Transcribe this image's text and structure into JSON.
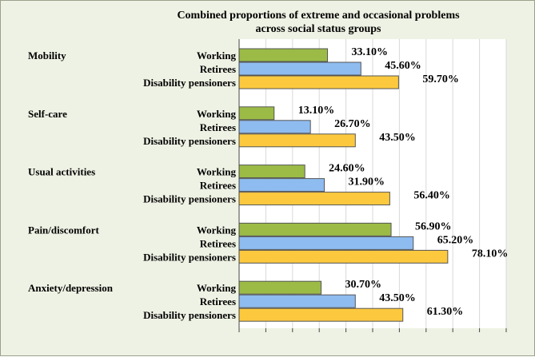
{
  "chart_data": {
    "type": "bar",
    "orientation": "horizontal",
    "title_lines": [
      "Combined proportions of extreme and occasional problems",
      "across social status groups"
    ],
    "xlim": [
      0,
      100
    ],
    "grid": true,
    "groups": [
      {
        "label": "Mobility",
        "bars": [
          {
            "name": "Working",
            "value": 33.1,
            "label": "33.10%"
          },
          {
            "name": "Retirees",
            "value": 45.6,
            "label": "45.60%"
          },
          {
            "name": "Disability pensioners",
            "value": 59.7,
            "label": "59.70%"
          }
        ]
      },
      {
        "label": "Self-care",
        "bars": [
          {
            "name": "Working",
            "value": 13.1,
            "label": "13.10%"
          },
          {
            "name": "Retirees",
            "value": 26.7,
            "label": "26.70%"
          },
          {
            "name": "Disability pensioners",
            "value": 43.5,
            "label": "43.50%"
          }
        ]
      },
      {
        "label": "Usual activities",
        "bars": [
          {
            "name": "Working",
            "value": 24.6,
            "label": "24.60%"
          },
          {
            "name": "Retirees",
            "value": 31.9,
            "label": "31.90%"
          },
          {
            "name": "Disability pensioners",
            "value": 56.4,
            "label": "56.40%"
          }
        ]
      },
      {
        "label": "Pain/discomfort",
        "bars": [
          {
            "name": "Working",
            "value": 56.9,
            "label": "56.90%"
          },
          {
            "name": "Retirees",
            "value": 65.2,
            "label": "65.20%"
          },
          {
            "name": "Disability pensioners",
            "value": 78.1,
            "label": "78.10%"
          }
        ]
      },
      {
        "label": "Anxiety/depression",
        "bars": [
          {
            "name": "Working",
            "value": 30.7,
            "label": "30.70%"
          },
          {
            "name": "Retirees",
            "value": 43.5,
            "label": "43.50%"
          },
          {
            "name": "Disability pensioners",
            "value": 61.3,
            "label": "61.30%"
          }
        ]
      }
    ],
    "series_colors": {
      "Working": "#9bbb46",
      "Retirees": "#8ebcf0",
      "Disability pensioners": "#fcc93e"
    }
  }
}
